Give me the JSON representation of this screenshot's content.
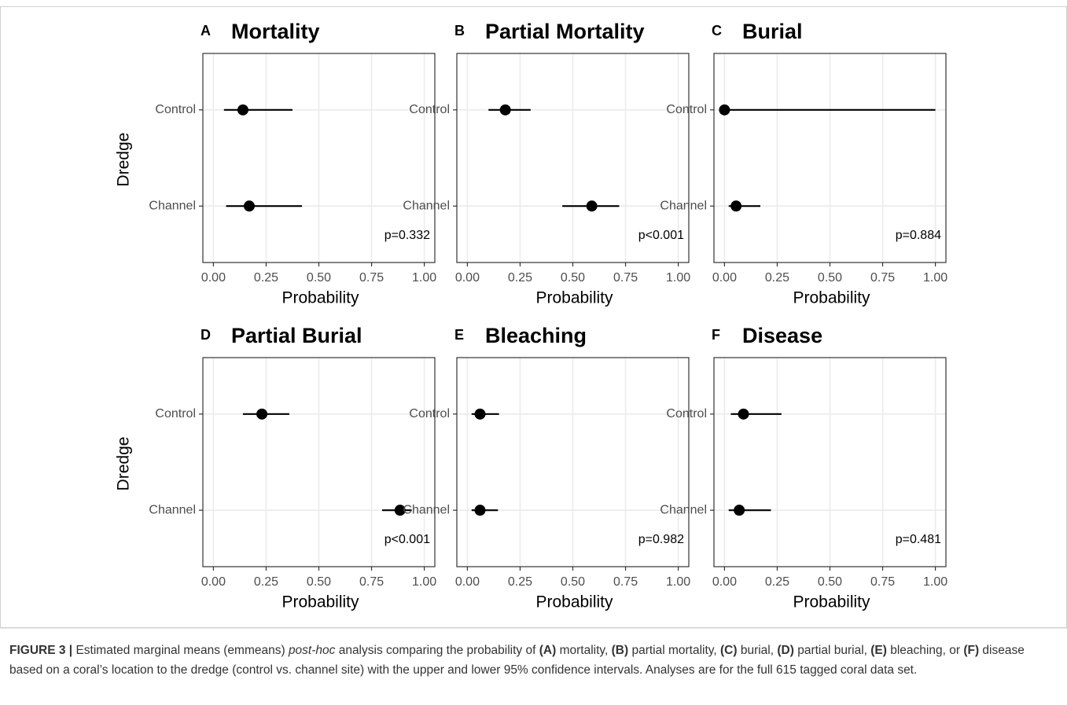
{
  "chart_data": [
    {
      "type": "pointrange",
      "panel": "A",
      "title": "Mortality",
      "categories": [
        "Control",
        "Channel"
      ],
      "values": [
        0.14,
        0.17
      ],
      "lower": [
        0.05,
        0.06
      ],
      "upper": [
        0.375,
        0.42
      ],
      "color": "#000000",
      "xlim": [
        -0.05,
        1.05
      ],
      "xticks": [
        {
          "value": 0,
          "label": "0.00"
        },
        {
          "value": 0.25,
          "label": "0.25"
        },
        {
          "value": 0.5,
          "label": "0.50"
        },
        {
          "value": 0.75,
          "label": "0.75"
        },
        {
          "value": 1,
          "label": "1.00"
        }
      ],
      "xlabel": "Probability",
      "ylabel": "Dredge",
      "annotation": "p=0.332",
      "grid": true
    },
    {
      "type": "pointrange",
      "panel": "B",
      "title": "Partial Mortality",
      "categories": [
        "Control",
        "Channel"
      ],
      "values": [
        0.18,
        0.59
      ],
      "lower": [
        0.1,
        0.45
      ],
      "upper": [
        0.3,
        0.72
      ],
      "color": "#000000",
      "xlim": [
        -0.05,
        1.05
      ],
      "xticks": [
        {
          "value": 0,
          "label": "0.00"
        },
        {
          "value": 0.25,
          "label": "0.25"
        },
        {
          "value": 0.5,
          "label": "0.50"
        },
        {
          "value": 0.75,
          "label": "0.75"
        },
        {
          "value": 1,
          "label": "1.00"
        }
      ],
      "xlabel": "Probability",
      "annotation": "p<0.001",
      "grid": true
    },
    {
      "type": "pointrange",
      "panel": "C",
      "title": "Burial",
      "categories": [
        "Control",
        "Channel"
      ],
      "values": [
        0.0,
        0.055
      ],
      "lower": [
        0.0,
        0.02
      ],
      "upper": [
        1.0,
        0.17
      ],
      "color": "#000000",
      "xlim": [
        -0.05,
        1.05
      ],
      "xticks": [
        {
          "value": 0,
          "label": "0.00"
        },
        {
          "value": 0.25,
          "label": "0.25"
        },
        {
          "value": 0.5,
          "label": "0.50"
        },
        {
          "value": 0.75,
          "label": "0.75"
        },
        {
          "value": 1,
          "label": "1.00"
        }
      ],
      "xlabel": "Probability",
      "annotation": "p=0.884",
      "grid": true
    },
    {
      "type": "pointrange",
      "panel": "D",
      "title": "Partial Burial",
      "categories": [
        "Control",
        "Channel"
      ],
      "values": [
        0.23,
        0.885
      ],
      "lower": [
        0.14,
        0.8
      ],
      "upper": [
        0.36,
        0.94
      ],
      "color": "#000000",
      "xlim": [
        -0.05,
        1.05
      ],
      "xticks": [
        {
          "value": 0,
          "label": "0.00"
        },
        {
          "value": 0.25,
          "label": "0.25"
        },
        {
          "value": 0.5,
          "label": "0.50"
        },
        {
          "value": 0.75,
          "label": "0.75"
        },
        {
          "value": 1,
          "label": "1.00"
        }
      ],
      "xlabel": "Probability",
      "ylabel": "Dredge",
      "annotation": "p<0.001",
      "grid": true
    },
    {
      "type": "pointrange",
      "panel": "E",
      "title": "Bleaching",
      "categories": [
        "Control",
        "Channel"
      ],
      "values": [
        0.06,
        0.06
      ],
      "lower": [
        0.02,
        0.02
      ],
      "upper": [
        0.15,
        0.145
      ],
      "color": "#000000",
      "xlim": [
        -0.05,
        1.05
      ],
      "xticks": [
        {
          "value": 0,
          "label": "0.00"
        },
        {
          "value": 0.25,
          "label": "0.25"
        },
        {
          "value": 0.5,
          "label": "0.50"
        },
        {
          "value": 0.75,
          "label": "0.75"
        },
        {
          "value": 1,
          "label": "1.00"
        }
      ],
      "xlabel": "Probability",
      "annotation": "p=0.982",
      "grid": true
    },
    {
      "type": "pointrange",
      "panel": "F",
      "title": "Disease",
      "categories": [
        "Control",
        "Channel"
      ],
      "values": [
        0.09,
        0.07
      ],
      "lower": [
        0.03,
        0.02
      ],
      "upper": [
        0.27,
        0.22
      ],
      "color": "#000000",
      "xlim": [
        -0.05,
        1.05
      ],
      "xticks": [
        {
          "value": 0,
          "label": "0.00"
        },
        {
          "value": 0.25,
          "label": "0.25"
        },
        {
          "value": 0.5,
          "label": "0.50"
        },
        {
          "value": 0.75,
          "label": "0.75"
        },
        {
          "value": 1,
          "label": "1.00"
        }
      ],
      "xlabel": "Probability",
      "annotation": "p=0.481",
      "grid": true
    }
  ],
  "caption": [
    {
      "text": "FIGURE 3 |",
      "style": "bold"
    },
    {
      "text": " Estimated marginal means (emmeans) ",
      "style": "normal"
    },
    {
      "text": "post-hoc",
      "style": "italic"
    },
    {
      "text": " analysis comparing the probability of ",
      "style": "normal"
    },
    {
      "text": "(A)",
      "style": "bold"
    },
    {
      "text": " mortality, ",
      "style": "normal"
    },
    {
      "text": "(B)",
      "style": "bold"
    },
    {
      "text": " partial mortality, ",
      "style": "normal"
    },
    {
      "text": "(C)",
      "style": "bold"
    },
    {
      "text": " burial, ",
      "style": "normal"
    },
    {
      "text": "(D)",
      "style": "bold"
    },
    {
      "text": " partial burial, ",
      "style": "normal"
    },
    {
      "text": "(E)",
      "style": "bold"
    },
    {
      "text": " bleaching, or ",
      "style": "normal"
    },
    {
      "text": "(F)",
      "style": "bold"
    },
    {
      "text": " disease based on a coral’s location to the dredge (control vs. channel site) with the upper and lower 95% confidence intervals. Analyses are for the full 615 tagged coral data set.",
      "style": "normal"
    }
  ]
}
